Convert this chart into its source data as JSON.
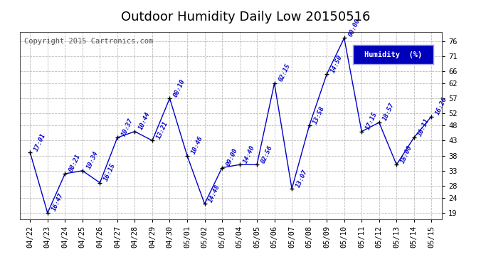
{
  "title": "Outdoor Humidity Daily Low 20150516",
  "copyright": "Copyright 2015 Cartronics.com",
  "legend_label": "Humidity  (%)",
  "ylim": [
    17,
    79
  ],
  "yticks": [
    19,
    24,
    28,
    33,
    38,
    43,
    48,
    52,
    57,
    62,
    66,
    71,
    76
  ],
  "background_color": "#ffffff",
  "grid_color": "#bbbbbb",
  "line_color": "#0000cc",
  "point_color": "#000000",
  "title_color": "#000000",
  "legend_bg": "#0000bb",
  "legend_text_color": "#ffffff",
  "categories": [
    "04/22",
    "04/23",
    "04/24",
    "04/25",
    "04/26",
    "04/27",
    "04/28",
    "04/29",
    "04/30",
    "05/01",
    "05/02",
    "05/03",
    "05/04",
    "05/05",
    "05/06",
    "05/07",
    "05/08",
    "05/09",
    "05/10",
    "05/11",
    "05/12",
    "05/13",
    "05/14",
    "05/15"
  ],
  "values": [
    39,
    19,
    32,
    33,
    29,
    44,
    46,
    43,
    57,
    38,
    22,
    34,
    35,
    35,
    62,
    27,
    48,
    65,
    77,
    46,
    49,
    35,
    44,
    51
  ],
  "labels": [
    "17:01",
    "16:47",
    "08:21",
    "19:34",
    "16:15",
    "10:37",
    "10:44",
    "13:21",
    "08:10",
    "10:46",
    "14:48",
    "09:00",
    "14:40",
    "02:56",
    "02:15",
    "13:07",
    "13:58",
    "14:50",
    "00:00",
    "17:15",
    "18:57",
    "18:00",
    "16:11",
    "16:26"
  ],
  "title_fontsize": 13,
  "label_fontsize": 6.5,
  "tick_fontsize": 7.5,
  "copyright_fontsize": 7.5
}
